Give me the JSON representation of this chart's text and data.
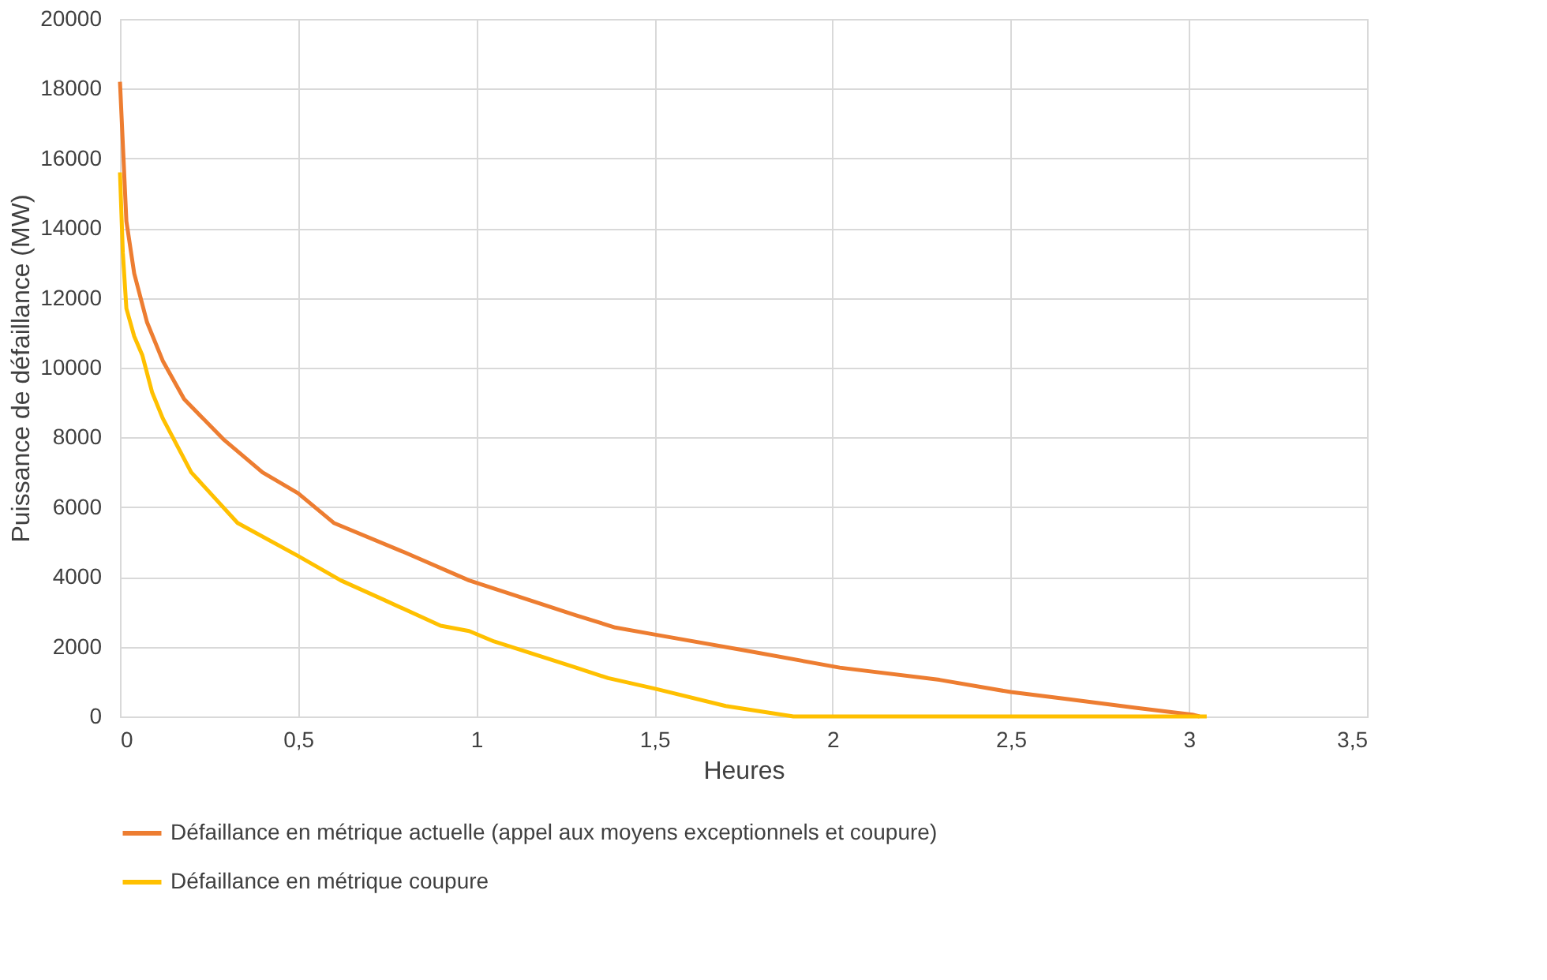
{
  "chart_data": {
    "type": "line",
    "xlabel": "Heures",
    "ylabel": "Puissance de défaillance (MW)",
    "xlim": [
      0,
      3.5
    ],
    "xticks": [
      {
        "value": 0,
        "label": "0"
      },
      {
        "value": 0.5,
        "label": "0,5"
      },
      {
        "value": 1,
        "label": "1"
      },
      {
        "value": 1.5,
        "label": "1,5"
      },
      {
        "value": 2,
        "label": "2"
      },
      {
        "value": 2.5,
        "label": "2,5"
      },
      {
        "value": 3,
        "label": "3"
      },
      {
        "value": 3.5,
        "label": "3,5"
      }
    ],
    "ylim": [
      0,
      20000
    ],
    "yticks": [
      0,
      2000,
      4000,
      6000,
      8000,
      10000,
      12000,
      14000,
      16000,
      18000,
      20000
    ],
    "grid": true,
    "legend": "bottom",
    "marker": "none",
    "line_style": "solid",
    "series": [
      {
        "name": "Défaillance en métrique actuelle (appel aux moyens exceptionnels et coupure)",
        "color": "#ed7d31",
        "x": [
          0,
          0.018,
          0.04,
          0.076,
          0.12,
          0.18,
          0.29,
          0.4,
          0.5,
          0.6,
          0.8,
          0.98,
          1.28,
          1.39,
          1.5,
          1.75,
          2.02,
          2.3,
          2.5,
          2.66,
          2.85,
          3.01,
          3.03
        ],
        "values": [
          18200,
          14200,
          12700,
          11300,
          10200,
          9100,
          7950,
          7000,
          6400,
          5550,
          4700,
          3900,
          2900,
          2550,
          2350,
          1900,
          1400,
          1050,
          700,
          500,
          250,
          50,
          0
        ]
      },
      {
        "name": "Défaillance en métrique coupure",
        "color": "#ffc000",
        "x": [
          0,
          0.008,
          0.018,
          0.04,
          0.063,
          0.09,
          0.12,
          0.2,
          0.33,
          0.5,
          0.62,
          0.75,
          0.9,
          0.98,
          1.05,
          1.28,
          1.37,
          1.5,
          1.7,
          1.89,
          2.2,
          2.6,
          3.05
        ],
        "values": [
          15600,
          13300,
          11700,
          10900,
          10350,
          9300,
          8550,
          7000,
          5550,
          4600,
          3900,
          3300,
          2600,
          2450,
          2150,
          1400,
          1100,
          800,
          300,
          0,
          0,
          0,
          0
        ]
      }
    ]
  }
}
